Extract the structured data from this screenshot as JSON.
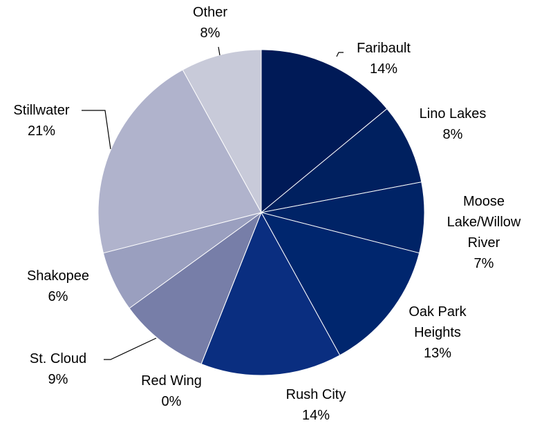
{
  "chart_data": {
    "type": "pie",
    "categories": [
      "Faribault",
      "Lino Lakes",
      "Moose Lake/Willow River",
      "Oak Park Heights",
      "Rush City",
      "Red Wing",
      "St. Cloud",
      "Shakopee",
      "Stillwater",
      "Other"
    ],
    "values": [
      14,
      8,
      7,
      13,
      14,
      0,
      9,
      6,
      21,
      8
    ],
    "value_labels": [
      "14%",
      "8%",
      "7%",
      "13%",
      "14%",
      "0%",
      "9%",
      "6%",
      "21%",
      "8%"
    ],
    "colors": [
      "#001a57",
      "#00205f",
      "#002366",
      "#00266e",
      "#0a2e80",
      "#2d3a8c",
      "#777ea8",
      "#9a9fbf",
      "#b0b3cc",
      "#c8cad9"
    ]
  }
}
